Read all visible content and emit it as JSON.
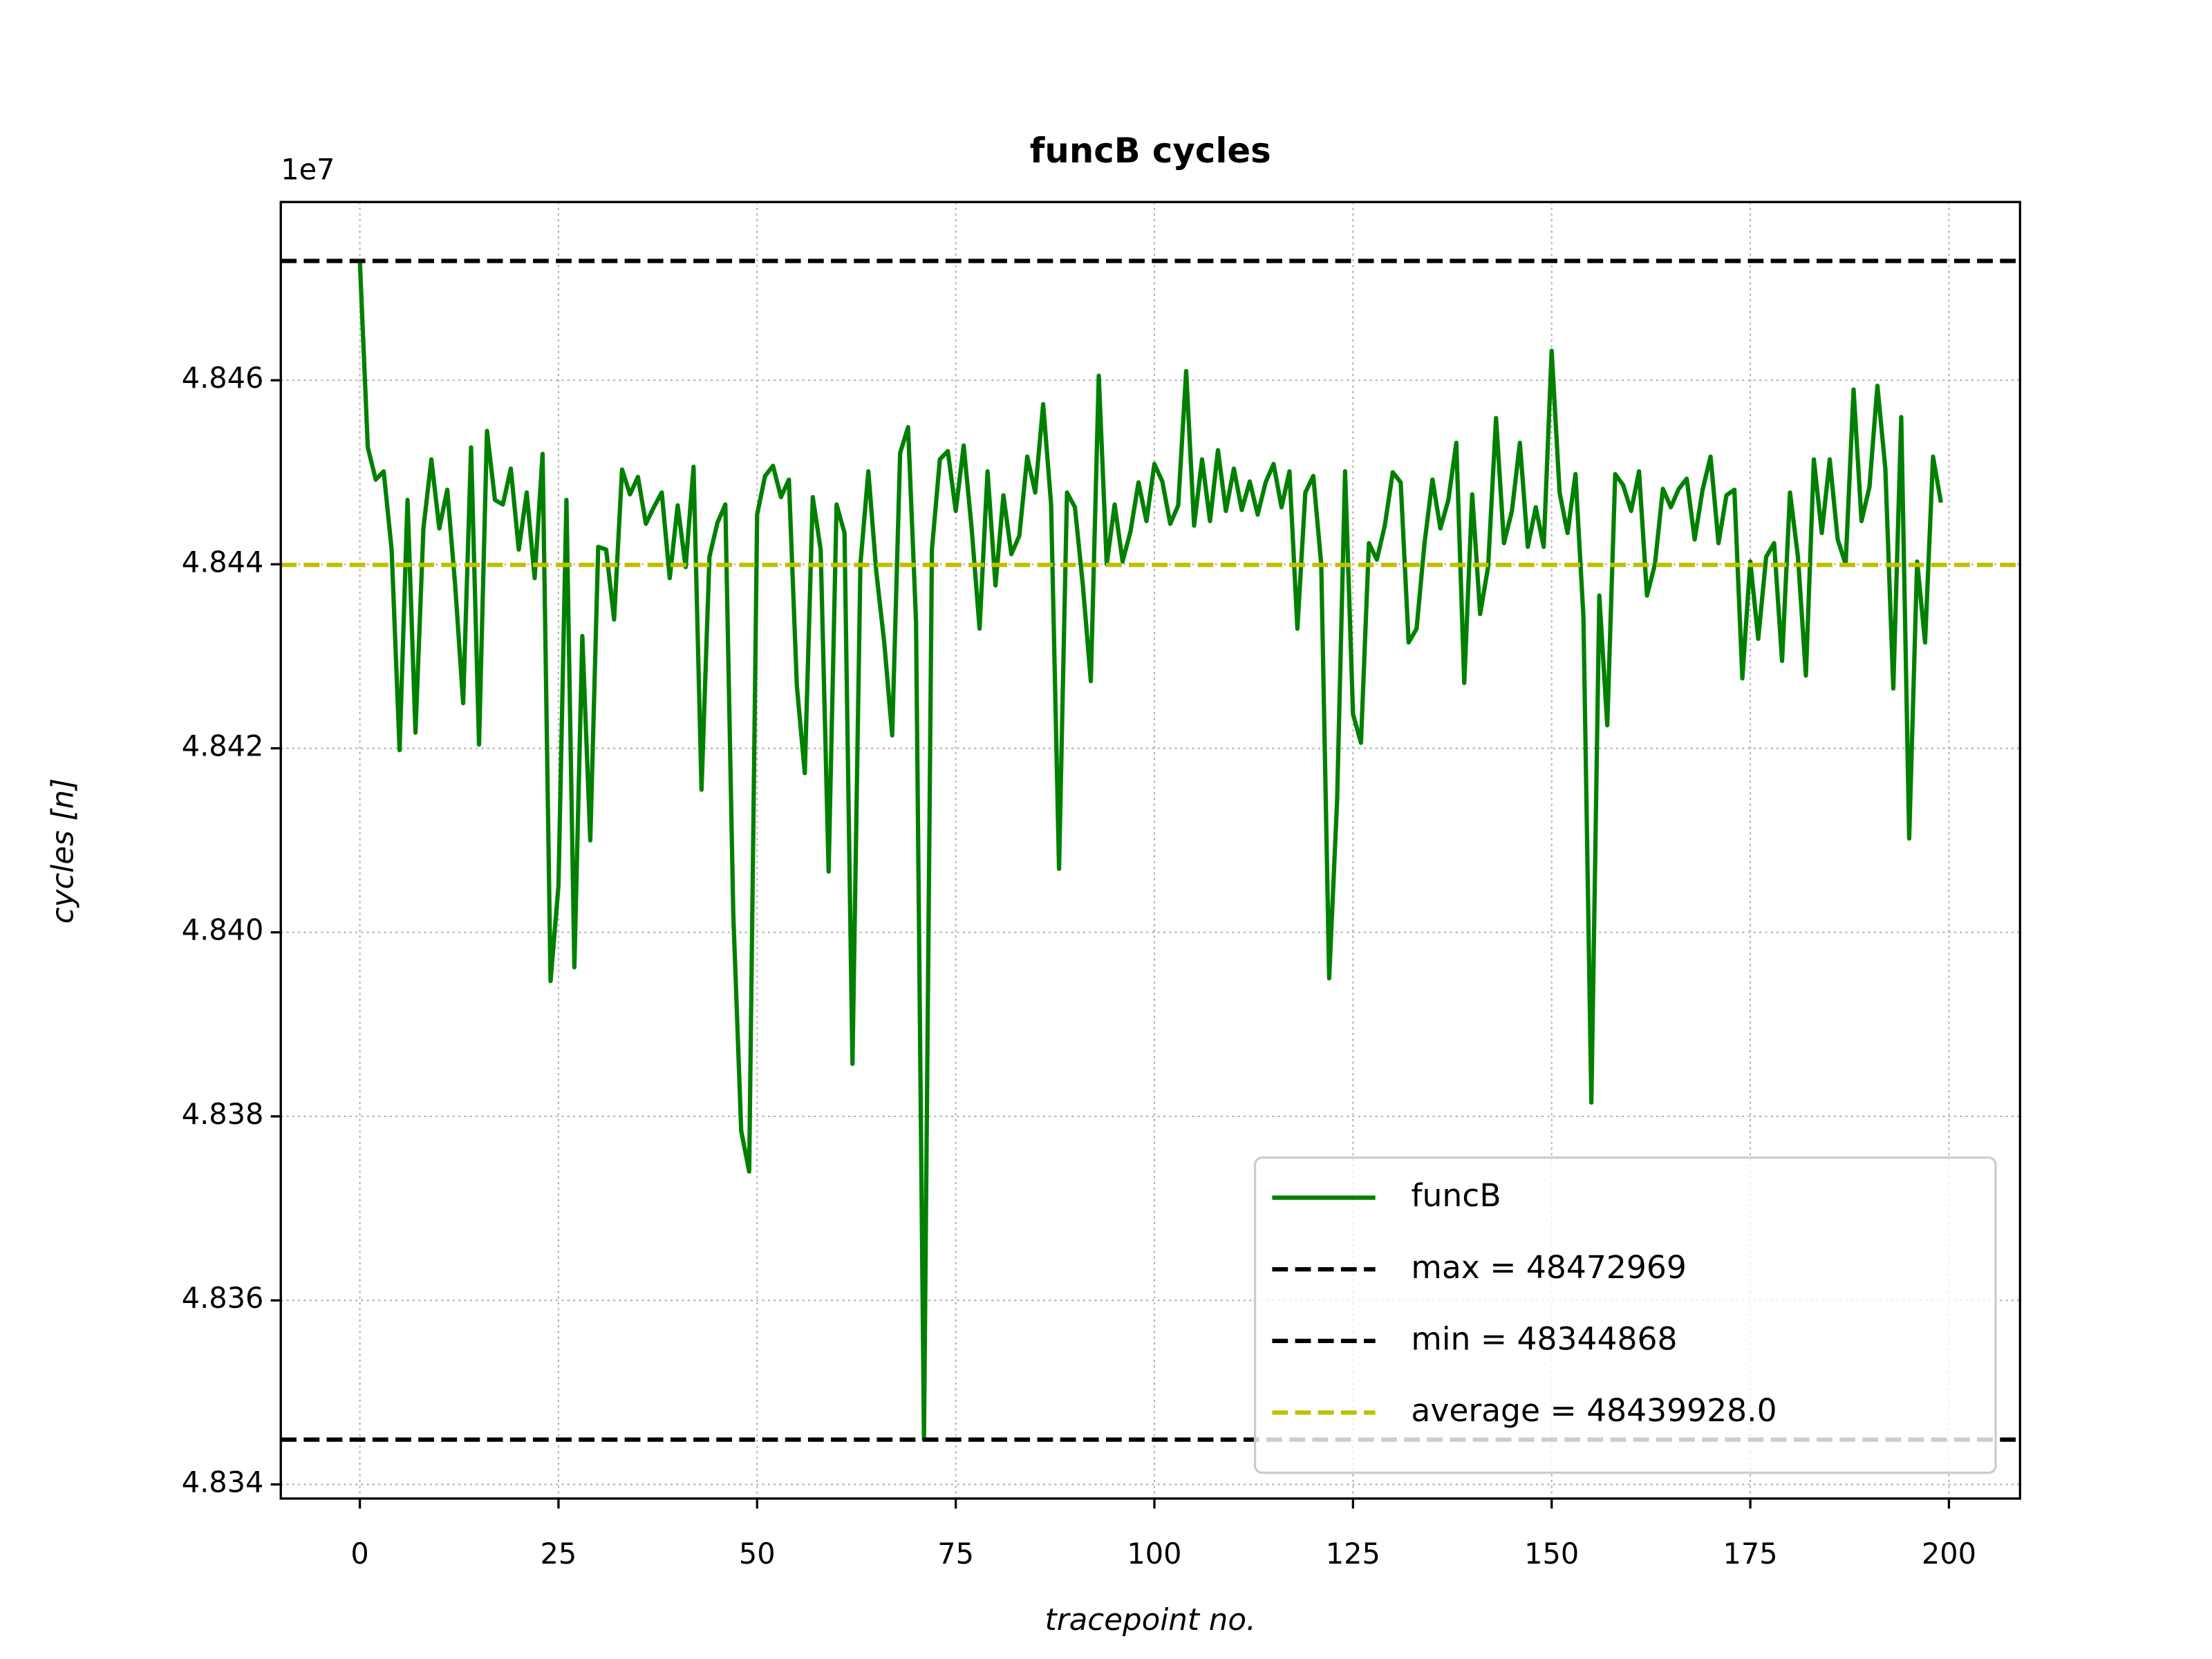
{
  "chart_data": {
    "type": "line",
    "title": "funcB cycles",
    "xlabel": "tracepoint no.",
    "ylabel": "cycles [n]",
    "y_offset_label": "1e7",
    "x": [
      0,
      1,
      2,
      3,
      4,
      5,
      6,
      7,
      8,
      9,
      10,
      11,
      12,
      13,
      14,
      15,
      16,
      17,
      18,
      19,
      20,
      21,
      22,
      23,
      24,
      25,
      26,
      27,
      28,
      29,
      30,
      31,
      32,
      33,
      34,
      35,
      36,
      37,
      38,
      39,
      40,
      41,
      42,
      43,
      44,
      45,
      46,
      47,
      48,
      49,
      50,
      51,
      52,
      53,
      54,
      55,
      56,
      57,
      58,
      59,
      60,
      61,
      62,
      63,
      64,
      65,
      66,
      67,
      68,
      69,
      70,
      71,
      72,
      73,
      74,
      75,
      76,
      77,
      78,
      79,
      80,
      81,
      82,
      83,
      84,
      85,
      86,
      87,
      88,
      89,
      90,
      91,
      92,
      93,
      94,
      95,
      96,
      97,
      98,
      99,
      100,
      101,
      102,
      103,
      104,
      105,
      106,
      107,
      108,
      109,
      110,
      111,
      112,
      113,
      114,
      115,
      116,
      117,
      118,
      119,
      120,
      121,
      122,
      123,
      124,
      125,
      126,
      127,
      128,
      129,
      130,
      131,
      132,
      133,
      134,
      135,
      136,
      137,
      138,
      139,
      140,
      141,
      142,
      143,
      144,
      145,
      146,
      147,
      148,
      149,
      150,
      151,
      152,
      153,
      154,
      155,
      156,
      157,
      158,
      159,
      160,
      161,
      162,
      163,
      164,
      165,
      166,
      167,
      168,
      169,
      170,
      171,
      172,
      173,
      174,
      175,
      176,
      177,
      178,
      179,
      180,
      181,
      182,
      183,
      184,
      185,
      186,
      187,
      188,
      189,
      190,
      191,
      192,
      193,
      194,
      195,
      196,
      197,
      198,
      199
    ],
    "series": [
      {
        "name": "funcB",
        "color": "#008000",
        "values": [
          48472969,
          48452700,
          48449200,
          48450100,
          48441600,
          48419800,
          48447000,
          48421700,
          48443900,
          48451400,
          48443900,
          48448100,
          48437700,
          48424900,
          48452700,
          48420400,
          48454500,
          48447000,
          48446500,
          48450400,
          48441600,
          48447800,
          48438500,
          48452000,
          48394700,
          48405100,
          48447000,
          48396200,
          48432200,
          48410000,
          48441900,
          48441600,
          48434000,
          48450300,
          48447600,
          48449500,
          48444400,
          48446200,
          48447800,
          48438500,
          48446400,
          48439700,
          48450600,
          48415500,
          48440800,
          48444500,
          48446500,
          48402000,
          48378400,
          48374000,
          48445400,
          48449600,
          48450700,
          48447300,
          48449200,
          48426800,
          48417300,
          48447300,
          48441600,
          48406600,
          48446500,
          48443400,
          48385700,
          48440000,
          48450100,
          48439200,
          48431500,
          48421400,
          48452100,
          48454900,
          48433800,
          48344868,
          48441600,
          48451400,
          48452300,
          48445800,
          48452900,
          48443900,
          48433000,
          48450100,
          48437700,
          48447500,
          48441100,
          48443100,
          48451700,
          48447800,
          48457400,
          48446500,
          48406900,
          48447800,
          48446200,
          48437700,
          48427300,
          48460500,
          48440000,
          48446500,
          48440300,
          48443600,
          48448900,
          48444700,
          48450900,
          48449000,
          48444400,
          48446400,
          48461000,
          48444200,
          48451400,
          48444700,
          48452400,
          48445800,
          48450400,
          48445900,
          48449000,
          48445400,
          48448900,
          48450900,
          48446200,
          48450100,
          48433000,
          48447800,
          48449600,
          48440000,
          48395000,
          48414400,
          48450100,
          48423700,
          48420600,
          48442300,
          48440500,
          48444200,
          48450000,
          48448900,
          48431500,
          48433000,
          48442300,
          48449200,
          48443900,
          48447000,
          48453200,
          48427100,
          48447600,
          48434600,
          48439700,
          48455900,
          48442300,
          48445800,
          48453200,
          48441900,
          48446200,
          48441900,
          48463200,
          48447800,
          48443400,
          48449800,
          48434300,
          48381500,
          48436600,
          48422500,
          48449800,
          48448600,
          48445800,
          48450100,
          48436600,
          48440000,
          48448200,
          48446200,
          48448200,
          48449300,
          48442700,
          48448100,
          48451700,
          48442300,
          48447500,
          48448100,
          48427600,
          48440300,
          48431900,
          48440800,
          48442300,
          48429500,
          48447800,
          48440800,
          48427900,
          48451400,
          48443400,
          48451400,
          48442700,
          48440000,
          48459000,
          48444700,
          48448400,
          48459400,
          48450400,
          48426500,
          48456000,
          48410200,
          48440300,
          48431500,
          48451700,
          48446700
        ]
      }
    ],
    "hlines": [
      {
        "name": "max = 48472969",
        "value": 48472969,
        "color": "#000000"
      },
      {
        "name": "min = 48344868",
        "value": 48344868,
        "color": "#000000"
      },
      {
        "name": "average = 48439928.0",
        "value": 48439928.0,
        "color": "#bfbf00"
      }
    ],
    "xlim": [
      -9.95,
      208.95
    ],
    "xticks": [
      0,
      25,
      50,
      75,
      100,
      125,
      150,
      175,
      200
    ],
    "ylim": [
      48338463,
      48479374
    ],
    "yticks": [
      {
        "value": 48340000,
        "label": "4.834"
      },
      {
        "value": 48360000,
        "label": "4.836"
      },
      {
        "value": 48380000,
        "label": "4.838"
      },
      {
        "value": 48400000,
        "label": "4.840"
      },
      {
        "value": 48420000,
        "label": "4.842"
      },
      {
        "value": 48440000,
        "label": "4.844"
      },
      {
        "value": 48460000,
        "label": "4.846"
      }
    ],
    "grid": true,
    "legend": "lower right"
  }
}
